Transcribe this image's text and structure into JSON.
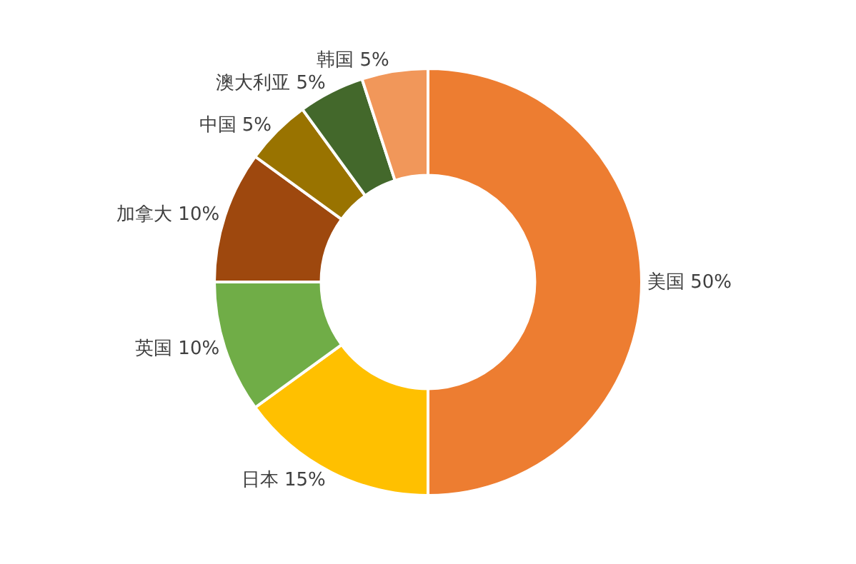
{
  "chart_data": {
    "type": "donut",
    "categories": [
      "美国",
      "日本",
      "英国",
      "加拿大",
      "中国",
      "澳大利亚",
      "韩国"
    ],
    "values": [
      50,
      15,
      10,
      10,
      5,
      5,
      5
    ],
    "value_labels": [
      "50%",
      "15%",
      "10%",
      "10%",
      "5%",
      "5%",
      "5%"
    ],
    "colors": [
      "#ed7d31",
      "#ffc000",
      "#70ad47",
      "#9e480e",
      "#997300",
      "#43682b",
      "#f1975a"
    ],
    "legend": false
  }
}
